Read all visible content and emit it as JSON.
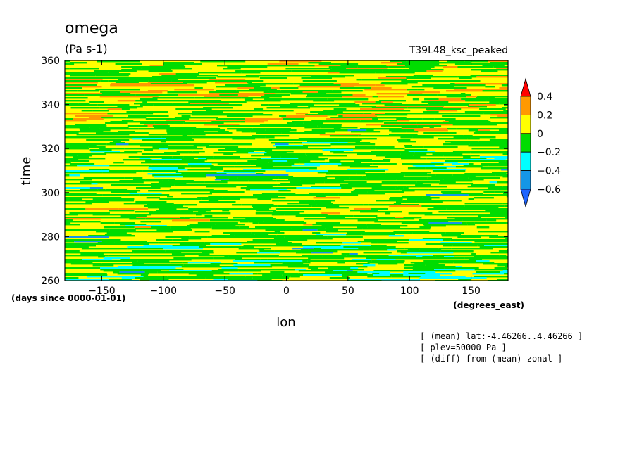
{
  "chart_data": {
    "type": "heatmap",
    "title": "omega",
    "units": "(Pa s-1)",
    "case_label": "T39L48_ksc_peaked",
    "xlabel": "lon",
    "ylabel": "time",
    "x_units": "(degrees_east)",
    "y_units": "(days since 0000-01-01)",
    "xlim": [
      -180,
      180
    ],
    "ylim": [
      260,
      360
    ],
    "x_ticks": [
      -150,
      -100,
      -50,
      0,
      50,
      100,
      150
    ],
    "y_ticks": [
      260,
      280,
      300,
      320,
      340,
      360
    ],
    "colorbar": {
      "levels": [
        -0.6,
        -0.4,
        -0.2,
        0,
        0.2,
        0.4
      ],
      "labels": [
        "-0.6",
        "-0.4",
        "-0.2",
        "0",
        "0.2",
        "0.4"
      ],
      "colors": [
        "#1e64ff",
        "#1496e6",
        "#00ffff",
        "#00dc00",
        "#ffff00",
        "#ff9900",
        "#ff0000"
      ]
    },
    "annotations": [
      "[ (mean) lat:-4.46266..4.46266 ]",
      "[ plev=50000 Pa ]",
      "[ (diff) from (mean) zonal ]"
    ]
  }
}
